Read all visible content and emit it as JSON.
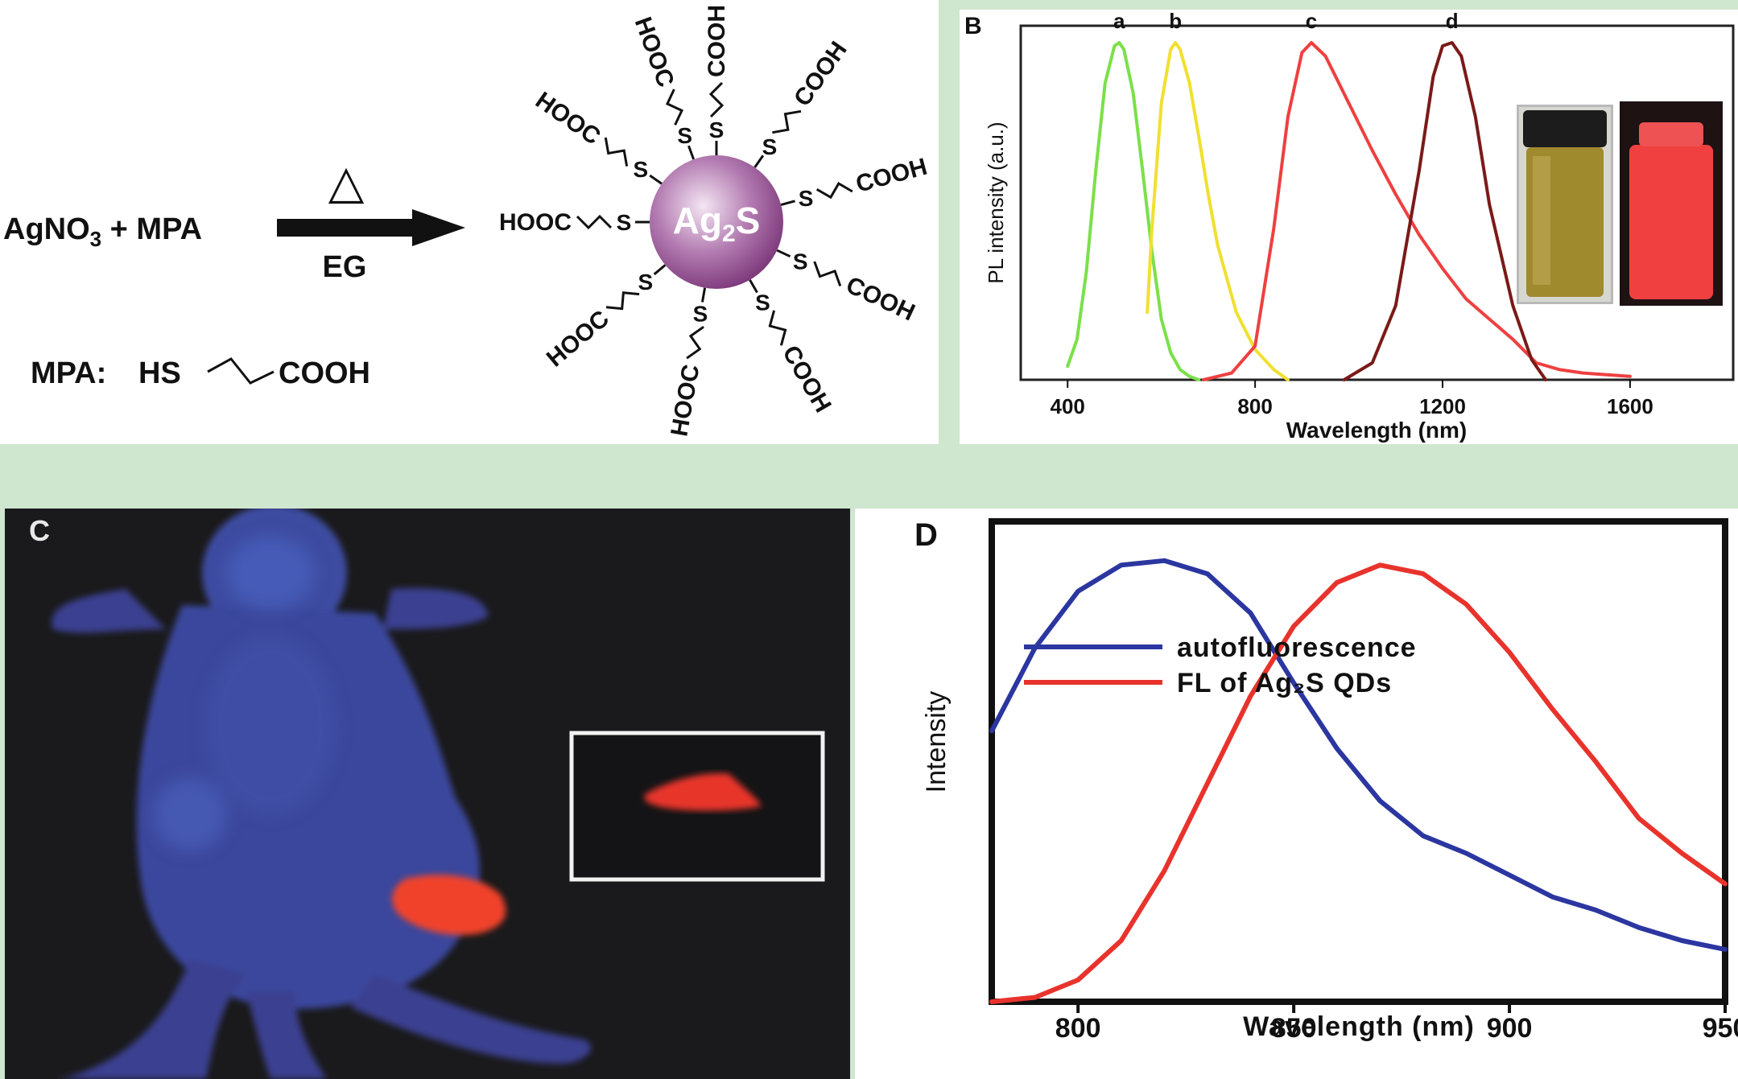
{
  "panel_a": {
    "reactants_main": "AgNO",
    "reactants_sub": "3",
    "reactants_rest": " + MPA",
    "heat_symbol": "△",
    "solvent": "EG",
    "mpa_label": "MPA:",
    "mpa_hs": "HS",
    "mpa_cooh": "COOH",
    "core_main": "Ag",
    "core_sub": "2",
    "core_rest": "S",
    "ligand_s": "S",
    "ligand_cooh": "COOH",
    "ligand_hooc": "HOOC",
    "core_color": "#a05a9e"
  },
  "panel_b": {
    "panel_letter": "B",
    "ylabel": "PL intensity (a.u.)",
    "xlabel": "Wavelength (nm)",
    "x_ticks": [
      "400",
      "800",
      "1200",
      "1600"
    ]
  },
  "panel_c": {
    "panel_letter": "C"
  },
  "panel_d": {
    "panel_letter": "D",
    "ylabel": "Intensity",
    "xlabel": "Wavelength (nm)",
    "x_ticks": [
      "800",
      "850",
      "900",
      "950"
    ]
  },
  "chart_data": [
    {
      "type": "line",
      "panel": "B",
      "xlabel": "Wavelength (nm)",
      "ylabel": "PL intensity (a.u.)",
      "xlim": [
        300,
        1820
      ],
      "ylim": [
        0,
        1.05
      ],
      "x_ticks": [
        400,
        800,
        1200,
        1600
      ],
      "series": [
        {
          "name": "a",
          "color": "#7be04a",
          "x": [
            400,
            420,
            440,
            460,
            480,
            500,
            510,
            520,
            540,
            560,
            580,
            600,
            620,
            640,
            660,
            680
          ],
          "y": [
            0.04,
            0.12,
            0.32,
            0.62,
            0.88,
            0.99,
            1.0,
            0.98,
            0.85,
            0.62,
            0.38,
            0.18,
            0.08,
            0.03,
            0.01,
            0.0
          ]
        },
        {
          "name": "b",
          "color": "#f0e030",
          "x": [
            570,
            580,
            600,
            620,
            630,
            640,
            660,
            680,
            700,
            720,
            760,
            800,
            840,
            870
          ],
          "y": [
            0.2,
            0.45,
            0.82,
            0.98,
            1.0,
            0.98,
            0.88,
            0.72,
            0.55,
            0.4,
            0.2,
            0.09,
            0.03,
            0.0
          ]
        },
        {
          "name": "c",
          "color": "#ee4040",
          "x": [
            690,
            750,
            800,
            840,
            870,
            900,
            920,
            950,
            1000,
            1050,
            1100,
            1150,
            1200,
            1250,
            1300,
            1350,
            1400,
            1450,
            1500,
            1600
          ],
          "y": [
            0.0,
            0.02,
            0.1,
            0.45,
            0.78,
            0.97,
            1.0,
            0.96,
            0.82,
            0.68,
            0.55,
            0.43,
            0.33,
            0.24,
            0.18,
            0.12,
            0.05,
            0.03,
            0.02,
            0.01
          ]
        },
        {
          "name": "d",
          "color": "#7a1a18",
          "x": [
            990,
            1050,
            1100,
            1150,
            1180,
            1200,
            1220,
            1240,
            1270,
            1300,
            1350,
            1390,
            1420
          ],
          "y": [
            0.0,
            0.05,
            0.22,
            0.62,
            0.9,
            0.99,
            1.0,
            0.96,
            0.78,
            0.52,
            0.22,
            0.06,
            0.0
          ]
        }
      ]
    },
    {
      "type": "line",
      "panel": "D",
      "xlabel": "Wavelength (nm)",
      "ylabel": "Intensity",
      "xlim": [
        780,
        950
      ],
      "ylim": [
        0,
        1.1
      ],
      "x_ticks": [
        800,
        850,
        900,
        950
      ],
      "series": [
        {
          "name": "autofluorescence",
          "color": "#2b36a0",
          "x": [
            780,
            790,
            800,
            810,
            820,
            830,
            840,
            850,
            860,
            870,
            880,
            890,
            900,
            910,
            920,
            930,
            940,
            950
          ],
          "y": [
            0.62,
            0.81,
            0.94,
            1.0,
            1.01,
            0.98,
            0.89,
            0.73,
            0.58,
            0.46,
            0.38,
            0.34,
            0.29,
            0.24,
            0.21,
            0.17,
            0.14,
            0.12
          ]
        },
        {
          "name": "FL of Ag₂S QDs",
          "color": "#e8332c",
          "x": [
            780,
            790,
            800,
            810,
            820,
            830,
            840,
            850,
            860,
            870,
            880,
            890,
            900,
            910,
            920,
            930,
            940,
            950
          ],
          "y": [
            0.0,
            0.01,
            0.05,
            0.14,
            0.3,
            0.5,
            0.7,
            0.86,
            0.96,
            1.0,
            0.98,
            0.91,
            0.8,
            0.67,
            0.55,
            0.42,
            0.34,
            0.27
          ]
        }
      ]
    }
  ]
}
